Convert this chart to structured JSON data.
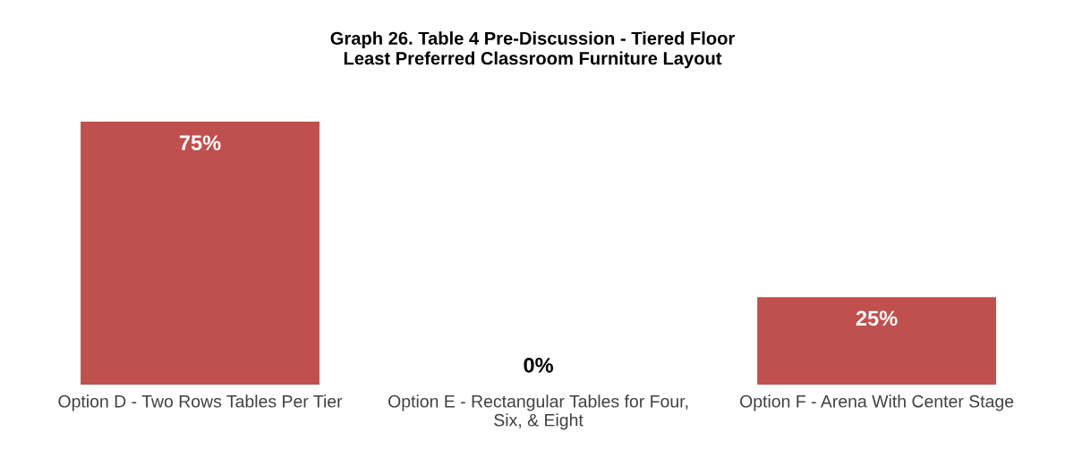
{
  "chart_data": {
    "type": "bar",
    "title": "Graph 26. Table 4 Pre-Discussion - Tiered Floor\nLeast Preferred Classroom Furniture Layout",
    "categories": [
      "Option D - Two Rows Tables Per Tier",
      "Option E - Rectangular Tables for Four, Six, & Eight",
      "Option F - Arena With Center Stage"
    ],
    "values": [
      75,
      0,
      25
    ],
    "value_labels": [
      "75%",
      "0%",
      "25%"
    ],
    "color": "#c0504d",
    "grid": false,
    "legend": false
  }
}
